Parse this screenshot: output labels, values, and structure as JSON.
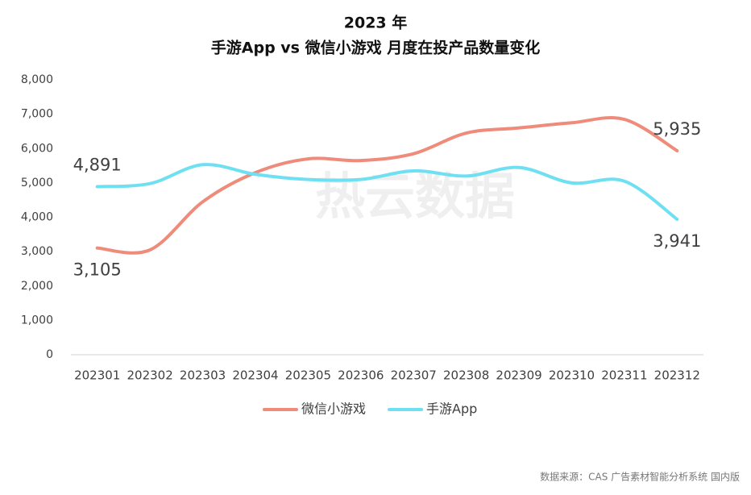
{
  "chart_data": {
    "type": "line",
    "title": "2023 年",
    "subtitle": "手游App vs 微信小游戏 月度在投产品数量变化",
    "categories": [
      "202301",
      "202302",
      "202303",
      "202304",
      "202305",
      "202306",
      "202307",
      "202308",
      "202309",
      "202310",
      "202311",
      "202312"
    ],
    "series": [
      {
        "name": "微信小游戏",
        "color": "#ef8b7a",
        "values": [
          3105,
          3050,
          4450,
          5300,
          5700,
          5650,
          5850,
          6450,
          6600,
          6750,
          6850,
          5935
        ],
        "value_labels": [
          "3,105",
          null,
          null,
          null,
          null,
          null,
          null,
          null,
          null,
          null,
          null,
          "5,935"
        ]
      },
      {
        "name": "手游App",
        "color": "#6fe0f2",
        "values": [
          4891,
          4980,
          5530,
          5250,
          5100,
          5100,
          5350,
          5200,
          5450,
          5000,
          5050,
          3941
        ],
        "value_labels": [
          "4,891",
          null,
          null,
          null,
          null,
          null,
          null,
          null,
          null,
          null,
          null,
          "3,941"
        ]
      }
    ],
    "ylim": [
      0,
      8000
    ],
    "yticks": [
      0,
      {
        "value": 1000,
        "label": "1,000"
      },
      {
        "value": 2000,
        "label": "2,000"
      },
      {
        "value": 3000,
        "label": "3,000"
      },
      {
        "value": 4000,
        "label": "4,000"
      },
      {
        "value": 5000,
        "label": "5,000"
      },
      {
        "value": 6000,
        "label": "6,000"
      },
      {
        "value": 7000,
        "label": "7,000"
      },
      {
        "value": 8000,
        "label": "8,000"
      }
    ],
    "legend": "bottom",
    "watermark": "热云数据",
    "source": "数据来源：CAS 广告素材智能分析系统 国内版"
  }
}
